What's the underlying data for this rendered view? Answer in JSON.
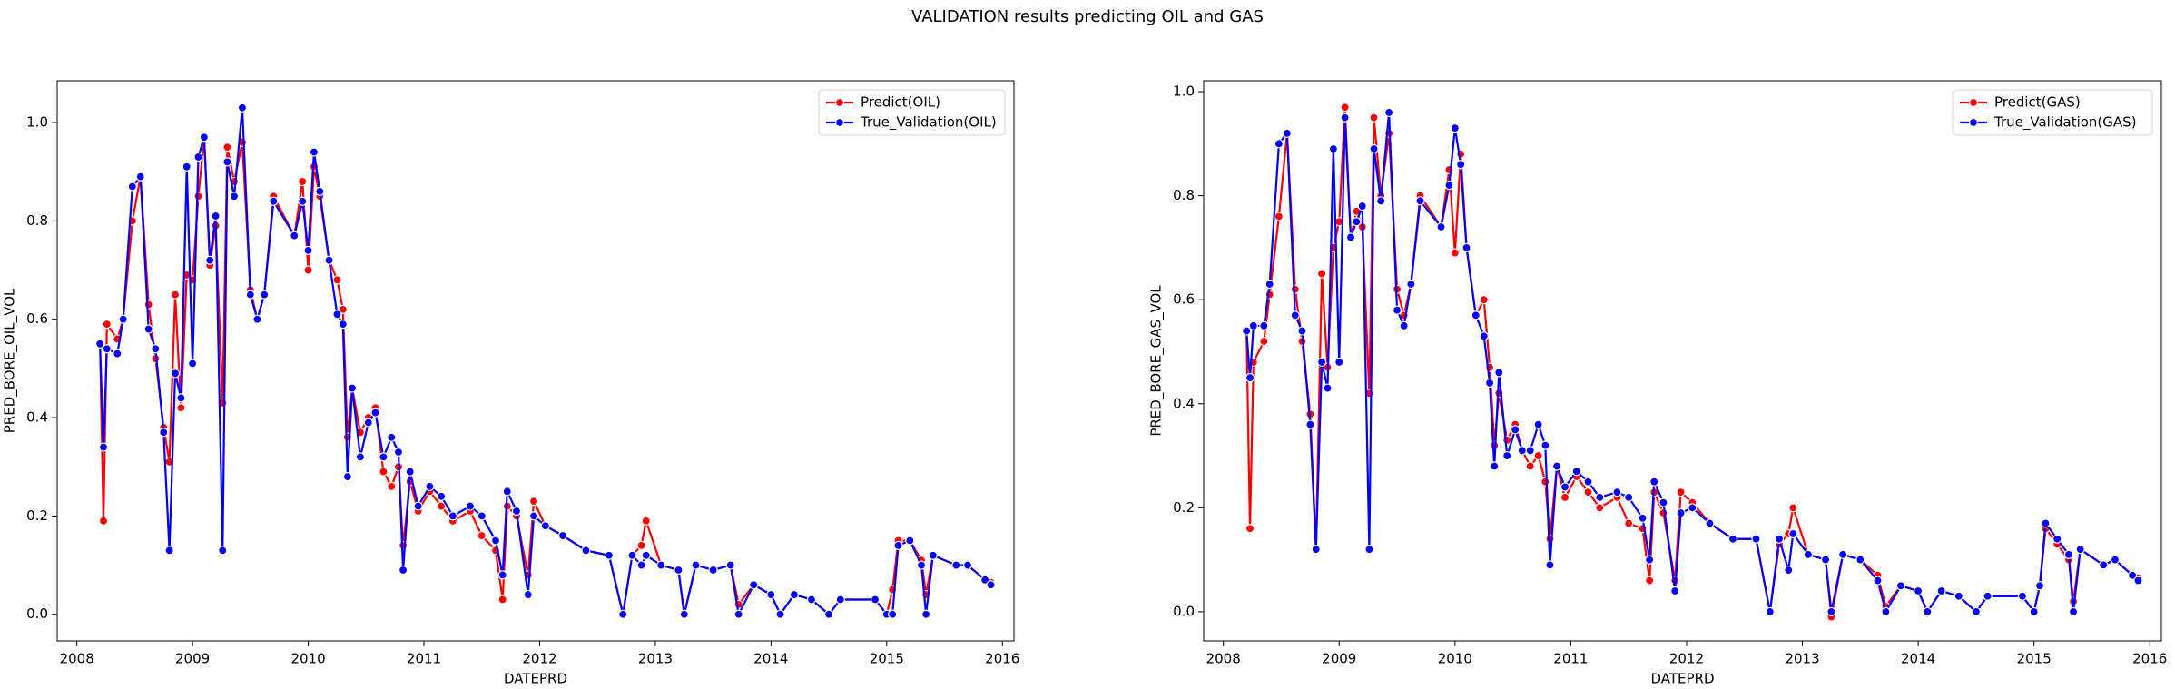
{
  "title": "VALIDATION results predicting OIL and GAS",
  "chart_data": [
    {
      "type": "line",
      "xlabel": "DATEPRD",
      "ylabel": "PRED_BORE_OIL_VOL",
      "legend": "upper right",
      "xlim": [
        2007.83,
        2016.1
      ],
      "xticks": [
        2008,
        2009,
        2010,
        2011,
        2012,
        2013,
        2014,
        2015,
        2016
      ],
      "ylim": [
        -0.054,
        1.085
      ],
      "yticks": [
        {
          "value": 0,
          "label": "0.0"
        },
        {
          "value": 0.2,
          "label": "0.2"
        },
        {
          "value": 0.4,
          "label": "0.4"
        },
        {
          "value": 0.6,
          "label": "0.6"
        },
        {
          "value": 0.8,
          "label": "0.8"
        },
        {
          "value": 1.0,
          "label": "1.0"
        }
      ],
      "x": [
        2008.2,
        2008.23,
        2008.26,
        2008.35,
        2008.4,
        2008.48,
        2008.55,
        2008.62,
        2008.68,
        2008.75,
        2008.8,
        2008.85,
        2008.9,
        2008.95,
        2009.0,
        2009.05,
        2009.1,
        2009.15,
        2009.2,
        2009.26,
        2009.3,
        2009.36,
        2009.43,
        2009.5,
        2009.56,
        2009.62,
        2009.7,
        2009.88,
        2009.95,
        2010.0,
        2010.05,
        2010.1,
        2010.18,
        2010.25,
        2010.3,
        2010.34,
        2010.38,
        2010.45,
        2010.52,
        2010.58,
        2010.65,
        2010.72,
        2010.78,
        2010.82,
        2010.88,
        2010.95,
        2011.05,
        2011.15,
        2011.25,
        2011.4,
        2011.5,
        2011.62,
        2011.68,
        2011.72,
        2011.8,
        2011.9,
        2011.95,
        2012.05,
        2012.2,
        2012.4,
        2012.6,
        2012.72,
        2012.8,
        2012.88,
        2012.92,
        2013.05,
        2013.2,
        2013.25,
        2013.35,
        2013.5,
        2013.65,
        2013.72,
        2013.85,
        2014.0,
        2014.08,
        2014.2,
        2014.35,
        2014.5,
        2014.6,
        2014.9,
        2015.0,
        2015.05,
        2015.1,
        2015.2,
        2015.3,
        2015.34,
        2015.4,
        2015.6,
        2015.7,
        2015.85,
        2015.9
      ],
      "series": [
        {
          "name": "Predict(OIL)",
          "color": "#ff0000",
          "values": [
            0.55,
            0.19,
            0.59,
            0.56,
            0.6,
            0.8,
            0.89,
            0.63,
            0.52,
            0.38,
            0.31,
            0.65,
            0.42,
            0.69,
            0.68,
            0.85,
            0.97,
            0.71,
            0.79,
            0.43,
            0.95,
            0.88,
            0.96,
            0.66,
            0.6,
            0.65,
            0.85,
            0.77,
            0.88,
            0.7,
            0.91,
            0.85,
            0.72,
            0.68,
            0.62,
            0.36,
            0.46,
            0.37,
            0.4,
            0.42,
            0.29,
            0.26,
            0.3,
            0.14,
            0.27,
            0.21,
            0.25,
            0.22,
            0.19,
            0.21,
            0.16,
            0.13,
            0.03,
            0.22,
            0.2,
            0.08,
            0.23,
            0.18,
            0.16,
            0.13,
            0.12,
            0.0,
            0.12,
            0.14,
            0.19,
            0.1,
            0.09,
            0.0,
            0.1,
            0.09,
            0.1,
            0.02,
            0.06,
            0.04,
            0.0,
            0.04,
            0.03,
            0.0,
            0.03,
            0.03,
            0.0,
            0.05,
            0.15,
            0.15,
            0.11,
            0.04,
            0.12,
            0.1,
            0.1,
            0.07,
            0.065
          ]
        },
        {
          "name": "True_Validation(OIL)",
          "color": "#0000ff",
          "values": [
            0.55,
            0.34,
            0.54,
            0.53,
            0.6,
            0.87,
            0.89,
            0.58,
            0.54,
            0.37,
            0.13,
            0.49,
            0.44,
            0.91,
            0.51,
            0.93,
            0.97,
            0.72,
            0.81,
            0.13,
            0.92,
            0.85,
            1.03,
            0.65,
            0.6,
            0.65,
            0.84,
            0.77,
            0.84,
            0.74,
            0.94,
            0.86,
            0.72,
            0.61,
            0.59,
            0.28,
            0.46,
            0.32,
            0.39,
            0.41,
            0.32,
            0.36,
            0.33,
            0.09,
            0.29,
            0.22,
            0.26,
            0.24,
            0.2,
            0.22,
            0.2,
            0.15,
            0.08,
            0.25,
            0.21,
            0.04,
            0.2,
            0.18,
            0.16,
            0.13,
            0.12,
            0.0,
            0.12,
            0.1,
            0.12,
            0.1,
            0.09,
            0.0,
            0.1,
            0.09,
            0.1,
            0.0,
            0.06,
            0.04,
            0.0,
            0.04,
            0.03,
            0.0,
            0.03,
            0.03,
            0.0,
            0.0,
            0.14,
            0.15,
            0.1,
            0.0,
            0.12,
            0.1,
            0.1,
            0.07,
            0.06
          ]
        }
      ]
    },
    {
      "type": "line",
      "xlabel": "DATEPRD",
      "ylabel": "PRED_BORE_GAS_VOL",
      "legend": "upper right",
      "xlim": [
        2007.83,
        2016.1
      ],
      "xticks": [
        2008,
        2009,
        2010,
        2011,
        2012,
        2013,
        2014,
        2015,
        2016
      ],
      "ylim": [
        -0.056,
        1.021
      ],
      "yticks": [
        {
          "value": 0,
          "label": "0.0"
        },
        {
          "value": 0.2,
          "label": "0.2"
        },
        {
          "value": 0.4,
          "label": "0.4"
        },
        {
          "value": 0.6,
          "label": "0.6"
        },
        {
          "value": 0.8,
          "label": "0.8"
        },
        {
          "value": 1.0,
          "label": "1.0"
        }
      ],
      "x": [
        2008.2,
        2008.23,
        2008.26,
        2008.35,
        2008.4,
        2008.48,
        2008.55,
        2008.62,
        2008.68,
        2008.75,
        2008.8,
        2008.85,
        2008.9,
        2008.95,
        2009.0,
        2009.05,
        2009.1,
        2009.15,
        2009.2,
        2009.26,
        2009.3,
        2009.36,
        2009.43,
        2009.5,
        2009.56,
        2009.62,
        2009.7,
        2009.88,
        2009.95,
        2010.0,
        2010.05,
        2010.1,
        2010.18,
        2010.25,
        2010.3,
        2010.34,
        2010.38,
        2010.45,
        2010.52,
        2010.58,
        2010.65,
        2010.72,
        2010.78,
        2010.82,
        2010.88,
        2010.95,
        2011.05,
        2011.15,
        2011.25,
        2011.4,
        2011.5,
        2011.62,
        2011.68,
        2011.72,
        2011.8,
        2011.9,
        2011.95,
        2012.05,
        2012.2,
        2012.4,
        2012.6,
        2012.72,
        2012.8,
        2012.88,
        2012.92,
        2013.05,
        2013.2,
        2013.25,
        2013.35,
        2013.5,
        2013.65,
        2013.72,
        2013.85,
        2014.0,
        2014.08,
        2014.2,
        2014.35,
        2014.5,
        2014.6,
        2014.9,
        2015.0,
        2015.05,
        2015.1,
        2015.2,
        2015.3,
        2015.34,
        2015.4,
        2015.6,
        2015.7,
        2015.85,
        2015.9
      ],
      "series": [
        {
          "name": "Predict(GAS)",
          "color": "#ff0000",
          "values": [
            0.54,
            0.16,
            0.48,
            0.52,
            0.61,
            0.76,
            0.92,
            0.62,
            0.52,
            0.38,
            0.12,
            0.65,
            0.47,
            0.7,
            0.75,
            0.97,
            0.72,
            0.77,
            0.74,
            0.42,
            0.95,
            0.8,
            0.92,
            0.62,
            0.57,
            0.63,
            0.8,
            0.74,
            0.85,
            0.69,
            0.88,
            0.7,
            0.57,
            0.6,
            0.47,
            0.32,
            0.42,
            0.33,
            0.36,
            0.31,
            0.28,
            0.3,
            0.25,
            0.14,
            0.28,
            0.22,
            0.26,
            0.23,
            0.2,
            0.22,
            0.17,
            0.16,
            0.06,
            0.23,
            0.19,
            0.06,
            0.23,
            0.21,
            0.17,
            0.14,
            0.14,
            0.0,
            0.13,
            0.15,
            0.2,
            0.11,
            0.1,
            -0.01,
            0.11,
            0.1,
            0.07,
            0.01,
            0.05,
            0.04,
            0.0,
            0.04,
            0.03,
            0.0,
            0.03,
            0.03,
            0.0,
            0.05,
            0.16,
            0.13,
            0.1,
            0.02,
            0.12,
            0.09,
            0.1,
            0.07,
            0.065
          ]
        },
        {
          "name": "True_Validation(GAS)",
          "color": "#0000ff",
          "values": [
            0.54,
            0.45,
            0.55,
            0.55,
            0.63,
            0.9,
            0.92,
            0.57,
            0.54,
            0.36,
            0.12,
            0.48,
            0.43,
            0.89,
            0.48,
            0.95,
            0.72,
            0.75,
            0.78,
            0.12,
            0.89,
            0.79,
            0.96,
            0.58,
            0.55,
            0.63,
            0.79,
            0.74,
            0.82,
            0.93,
            0.86,
            0.7,
            0.57,
            0.53,
            0.44,
            0.28,
            0.46,
            0.3,
            0.35,
            0.31,
            0.31,
            0.36,
            0.32,
            0.09,
            0.28,
            0.24,
            0.27,
            0.25,
            0.22,
            0.23,
            0.22,
            0.18,
            0.1,
            0.25,
            0.21,
            0.04,
            0.19,
            0.2,
            0.17,
            0.14,
            0.14,
            0.0,
            0.14,
            0.08,
            0.15,
            0.11,
            0.1,
            0.0,
            0.11,
            0.1,
            0.06,
            0.0,
            0.05,
            0.04,
            0.0,
            0.04,
            0.03,
            0.0,
            0.03,
            0.03,
            0.0,
            0.05,
            0.17,
            0.14,
            0.11,
            0.0,
            0.12,
            0.09,
            0.1,
            0.07,
            0.06
          ]
        }
      ]
    }
  ]
}
